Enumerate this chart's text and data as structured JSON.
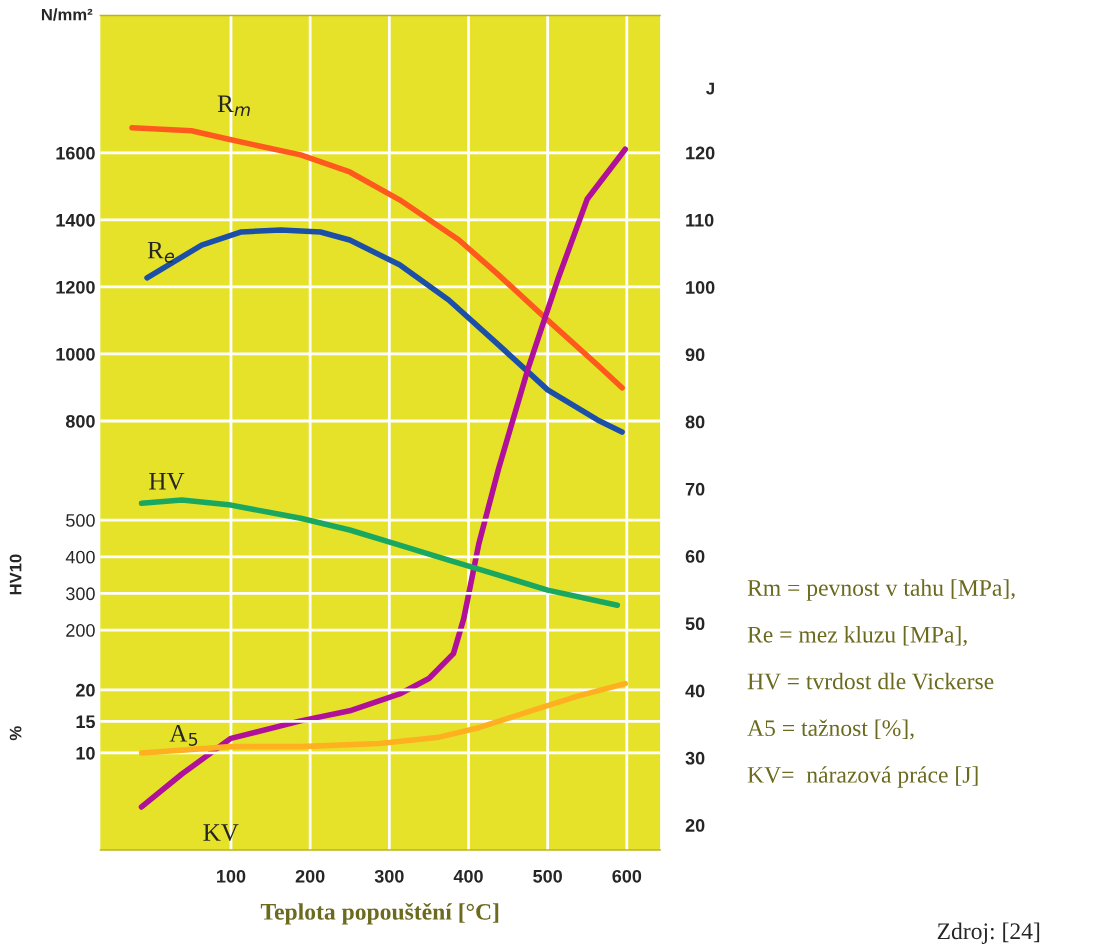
{
  "chart_data": [
    {
      "type": "line",
      "xlabel": "Teplota popouštění [°C]",
      "ylabel": "N/mm²",
      "y2label": "J",
      "y3label": "HV10",
      "xlim": [
        -65,
        642
      ],
      "xticks": [
        100,
        200,
        300,
        400,
        500,
        600
      ],
      "ylim": [
        -480,
        2010
      ],
      "yticks": [
        800,
        1000,
        1200,
        1400,
        1600
      ],
      "y2lim": [
        16.3,
        140.4
      ],
      "y2ticks": [
        20,
        30,
        40,
        50,
        60,
        70,
        80,
        90,
        100,
        110,
        120
      ],
      "y3lim": [
        -400,
        1877
      ],
      "y3ticks": [
        200,
        300,
        400,
        500
      ],
      "grid": true,
      "legend": false,
      "series": [
        {
          "name": "R$_{m}$",
          "color": "#ff5a1e",
          "x": [
            -25,
            50,
            100,
            188,
            250,
            313,
            388,
            438,
            500,
            563,
            594
          ],
          "values": [
            1675,
            1666,
            1639,
            1594,
            1543,
            1460,
            1340,
            1236,
            1101,
            967,
            899
          ]
        },
        {
          "name": "R$_{e}$",
          "color": "#1b4fa8",
          "x": [
            -6,
            63,
            113,
            163,
            213,
            250,
            313,
            375,
            438,
            500,
            563,
            594
          ],
          "values": [
            1227,
            1325,
            1364,
            1370,
            1364,
            1340,
            1266,
            1161,
            1027,
            893,
            803,
            767
          ]
        },
        {
          "name": "HV",
          "color": "#1aa860",
          "axis": "y3",
          "x": [
            -13,
            38,
            100,
            188,
            250,
            313,
            375,
            438,
            500,
            588
          ],
          "values": [
            546,
            555,
            541,
            505,
            473,
            432,
            391,
            350,
            309,
            268
          ]
        },
        {
          "name": "KV",
          "color": "#b0109a",
          "axis": "y2",
          "x": [
            -13,
            38,
            100,
            188,
            250,
            313,
            350,
            381,
            394,
            413,
            438,
            475,
            513,
            550,
            598
          ],
          "values": [
            22.7,
            27.6,
            32.9,
            35.5,
            37,
            39.5,
            41.8,
            45.5,
            50.7,
            61.8,
            73,
            87.8,
            101.2,
            113.1,
            120.5
          ]
        }
      ],
      "annotations": [
        "Rm = pevnost v tahu [MPa],",
        "Re = mez kluzu [MPa],",
        "HV = tvrdost dle Vickerse",
        "A5 = tažnost [%],",
        "KV=  nárazová práce [J]",
        "Zdroj: [24]"
      ]
    },
    {
      "type": "line",
      "ylabel": "%",
      "xlim": [
        -65,
        642
      ],
      "ylim": [
        -5.4,
        127
      ],
      "yticks": [
        10,
        15,
        20
      ],
      "tick_labels": "y",
      "grid": "y",
      "series": [
        {
          "name": "A$_{5}$",
          "color": "#ffb020",
          "x": [
            -13,
            100,
            188,
            288,
            363,
            413,
            475,
            538,
            598
          ],
          "values": [
            10,
            11,
            11,
            11.5,
            12.5,
            14,
            16.5,
            19,
            21
          ]
        }
      ]
    }
  ]
}
